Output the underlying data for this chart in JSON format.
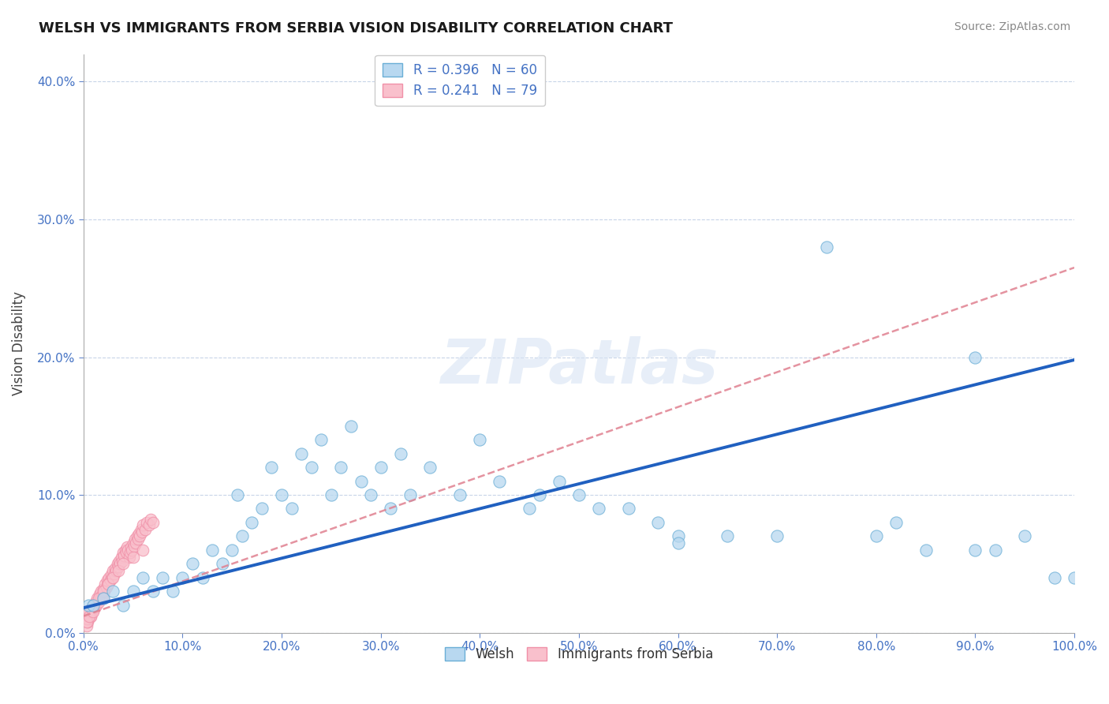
{
  "title": "WELSH VS IMMIGRANTS FROM SERBIA VISION DISABILITY CORRELATION CHART",
  "source": "Source: ZipAtlas.com",
  "ylabel": "Vision Disability",
  "xlabel": "",
  "legend_bottom": [
    "Welsh",
    "Immigrants from Serbia"
  ],
  "welsh_R": 0.396,
  "welsh_N": 60,
  "serbia_R": 0.241,
  "serbia_N": 79,
  "welsh_color_face": "#b8d8f0",
  "welsh_color_edge": "#6aaed6",
  "serbia_color_face": "#f9c0cc",
  "serbia_color_edge": "#f090a8",
  "welsh_line_color": "#2060c0",
  "serbia_line_color": "#e08090",
  "background_color": "#ffffff",
  "grid_color": "#c8d4e8",
  "watermark": "ZIPatlas",
  "xlim": [
    0,
    1.0
  ],
  "ylim": [
    0,
    0.42
  ],
  "xticks": [
    0.0,
    0.1,
    0.2,
    0.3,
    0.4,
    0.5,
    0.6,
    0.7,
    0.8,
    0.9,
    1.0
  ],
  "yticks": [
    0.0,
    0.1,
    0.2,
    0.3,
    0.4
  ],
  "welsh_line_x0": 0.0,
  "welsh_line_y0": 0.018,
  "welsh_line_x1": 1.0,
  "welsh_line_y1": 0.198,
  "serbia_line_x0": 0.0,
  "serbia_line_y0": 0.012,
  "serbia_line_x1": 1.0,
  "serbia_line_y1": 0.265,
  "welsh_x": [
    0.005,
    0.01,
    0.02,
    0.03,
    0.04,
    0.05,
    0.06,
    0.07,
    0.08,
    0.09,
    0.1,
    0.11,
    0.12,
    0.13,
    0.14,
    0.15,
    0.155,
    0.16,
    0.17,
    0.18,
    0.19,
    0.2,
    0.21,
    0.22,
    0.23,
    0.24,
    0.25,
    0.26,
    0.27,
    0.28,
    0.29,
    0.3,
    0.31,
    0.32,
    0.33,
    0.35,
    0.38,
    0.4,
    0.42,
    0.45,
    0.46,
    0.48,
    0.5,
    0.52,
    0.55,
    0.58,
    0.6,
    0.65,
    0.7,
    0.75,
    0.8,
    0.82,
    0.85,
    0.9,
    0.92,
    0.95,
    0.98,
    1.0,
    0.6,
    0.9
  ],
  "welsh_y": [
    0.02,
    0.02,
    0.025,
    0.03,
    0.02,
    0.03,
    0.04,
    0.03,
    0.04,
    0.03,
    0.04,
    0.05,
    0.04,
    0.06,
    0.05,
    0.06,
    0.1,
    0.07,
    0.08,
    0.09,
    0.12,
    0.1,
    0.09,
    0.13,
    0.12,
    0.14,
    0.1,
    0.12,
    0.15,
    0.11,
    0.1,
    0.12,
    0.09,
    0.13,
    0.1,
    0.12,
    0.1,
    0.14,
    0.11,
    0.09,
    0.1,
    0.11,
    0.1,
    0.09,
    0.09,
    0.08,
    0.07,
    0.07,
    0.07,
    0.28,
    0.07,
    0.08,
    0.06,
    0.06,
    0.06,
    0.07,
    0.04,
    0.04,
    0.065,
    0.2
  ],
  "serbia_x": [
    0.003,
    0.004,
    0.005,
    0.006,
    0.007,
    0.008,
    0.009,
    0.01,
    0.011,
    0.012,
    0.013,
    0.014,
    0.015,
    0.016,
    0.017,
    0.018,
    0.019,
    0.02,
    0.021,
    0.022,
    0.023,
    0.024,
    0.025,
    0.026,
    0.027,
    0.028,
    0.029,
    0.03,
    0.031,
    0.032,
    0.033,
    0.034,
    0.035,
    0.036,
    0.037,
    0.038,
    0.039,
    0.04,
    0.041,
    0.042,
    0.043,
    0.044,
    0.045,
    0.046,
    0.047,
    0.048,
    0.049,
    0.05,
    0.051,
    0.052,
    0.053,
    0.054,
    0.055,
    0.056,
    0.057,
    0.058,
    0.059,
    0.06,
    0.062,
    0.064,
    0.066,
    0.068,
    0.07,
    0.003,
    0.005,
    0.007,
    0.01,
    0.015,
    0.02,
    0.025,
    0.03,
    0.035,
    0.04,
    0.05,
    0.06,
    0.003,
    0.006,
    0.01,
    0.02
  ],
  "serbia_y": [
    0.005,
    0.008,
    0.01,
    0.015,
    0.012,
    0.018,
    0.015,
    0.02,
    0.018,
    0.022,
    0.02,
    0.025,
    0.022,
    0.028,
    0.025,
    0.03,
    0.028,
    0.032,
    0.03,
    0.035,
    0.033,
    0.038,
    0.036,
    0.04,
    0.038,
    0.042,
    0.04,
    0.045,
    0.043,
    0.047,
    0.045,
    0.05,
    0.048,
    0.052,
    0.05,
    0.055,
    0.052,
    0.058,
    0.056,
    0.06,
    0.058,
    0.062,
    0.06,
    0.055,
    0.058,
    0.062,
    0.06,
    0.065,
    0.063,
    0.068,
    0.065,
    0.07,
    0.068,
    0.072,
    0.07,
    0.075,
    0.073,
    0.078,
    0.075,
    0.08,
    0.078,
    0.082,
    0.08,
    0.01,
    0.015,
    0.012,
    0.02,
    0.025,
    0.03,
    0.035,
    0.04,
    0.045,
    0.05,
    0.055,
    0.06,
    0.008,
    0.012,
    0.015,
    0.025
  ]
}
